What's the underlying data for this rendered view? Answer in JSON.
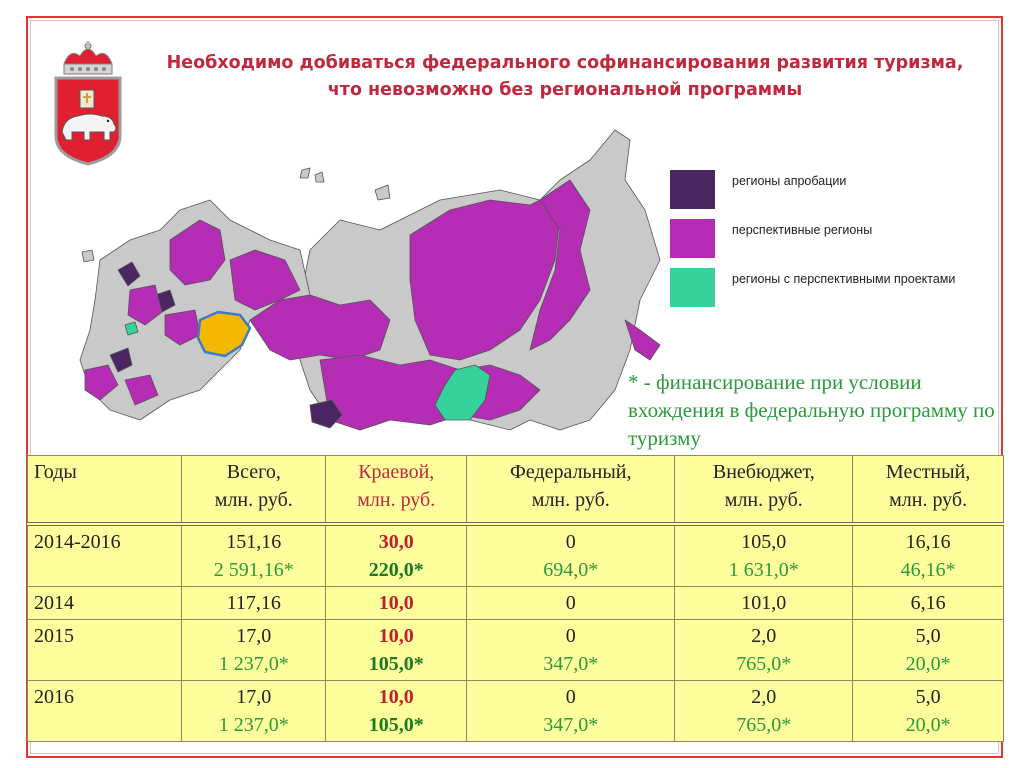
{
  "title": "Необходимо добиваться федерального софинансирования развития туризма, что невозможно без региональной программы",
  "legend": [
    {
      "label": "регионы апробации",
      "color": "#4a2762"
    },
    {
      "label": "перспективные регионы",
      "color": "#b52cb5"
    },
    {
      "label": "регионы с перспективными проектами",
      "color": "#35d39b"
    }
  ],
  "note": "* - финансирование при условии вхождения в  федеральную программу по туризму",
  "map_colors": {
    "gray": "#c9c9c9",
    "highlight": "#f5b800",
    "highlight_border": "#3f7bc7"
  },
  "table": {
    "headers": [
      {
        "line1": "Годы",
        "line2": ""
      },
      {
        "line1": "Всего,",
        "line2": "млн. руб."
      },
      {
        "line1": "Краевой,",
        "line2": "млн. руб."
      },
      {
        "line1": "Федеральный,",
        "line2": "млн. руб."
      },
      {
        "line1": "Внебюджет,",
        "line2": "млн. руб."
      },
      {
        "line1": "Местный,",
        "line2": "млн. руб."
      }
    ],
    "rows": [
      {
        "year": "2014-2016",
        "total": "151,16",
        "total_alt": "2 591,16*",
        "regional": "30,0",
        "regional_alt": "220,0*",
        "federal": "0",
        "federal_alt": "694,0*",
        "extra": "105,0",
        "extra_alt": "1 631,0*",
        "local": "16,16",
        "local_alt": "46,16*"
      },
      {
        "year": "2014",
        "total": "117,16",
        "total_alt": "",
        "regional": "10,0",
        "regional_alt": "",
        "federal": "0",
        "federal_alt": "",
        "extra": "101,0",
        "extra_alt": "",
        "local": "6,16",
        "local_alt": ""
      },
      {
        "year": "2015",
        "total": "17,0",
        "total_alt": "1 237,0*",
        "regional": "10,0",
        "regional_alt": "105,0*",
        "federal": "0",
        "federal_alt": "347,0*",
        "extra": "2,0",
        "extra_alt": "765,0*",
        "local": "5,0",
        "local_alt": "20,0*"
      },
      {
        "year": "2016",
        "total": "17,0",
        "total_alt": "1 237,0*",
        "regional": "10,0",
        "regional_alt": "105,0*",
        "federal": "0",
        "federal_alt": "347,0*",
        "extra": "2,0",
        "extra_alt": "765,0*",
        "local": "5,0",
        "local_alt": "20,0*"
      }
    ]
  }
}
